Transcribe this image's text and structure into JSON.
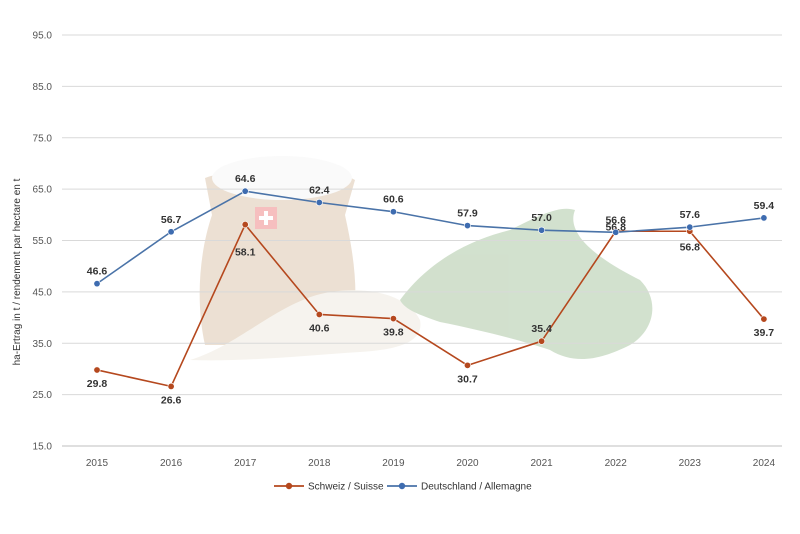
{
  "chart_data": {
    "type": "line",
    "title": "",
    "xlabel": "",
    "ylabel": "ha-Ertrag in t / rendement par hectare en t",
    "ylim": [
      15.0,
      95.0
    ],
    "yticks": [
      "15.0",
      "25.0",
      "35.0",
      "45.0",
      "55.0",
      "65.0",
      "75.0",
      "85.0",
      "95.0"
    ],
    "categories": [
      "2015",
      "2016",
      "2017",
      "2018",
      "2019",
      "2020",
      "2021",
      "2022",
      "2023",
      "2024"
    ],
    "grid": true,
    "legend_position": "bottom",
    "series": [
      {
        "name": "Schweiz / Suisse",
        "color": "#b5481e",
        "marker_color": "#b5481e",
        "values": [
          29.8,
          26.6,
          58.1,
          40.6,
          39.8,
          30.7,
          35.4,
          56.8,
          56.8,
          39.7
        ],
        "labels": [
          "29.8",
          "26.6",
          "58.1",
          "40.6",
          "39.8",
          "30.7",
          "35.4",
          "56.8",
          "56.8",
          "39.7"
        ]
      },
      {
        "name": "Deutschland / Allemagne",
        "color": "#4a73a8",
        "marker_color": "#3e6cb0",
        "values": [
          46.6,
          56.7,
          64.6,
          62.4,
          60.6,
          57.9,
          57.0,
          56.6,
          57.6,
          59.4
        ],
        "labels": [
          "46.6",
          "56.7",
          "64.6",
          "62.4",
          "60.6",
          "57.9",
          "57.0",
          "56.6",
          "57.6",
          "59.4"
        ]
      }
    ]
  }
}
